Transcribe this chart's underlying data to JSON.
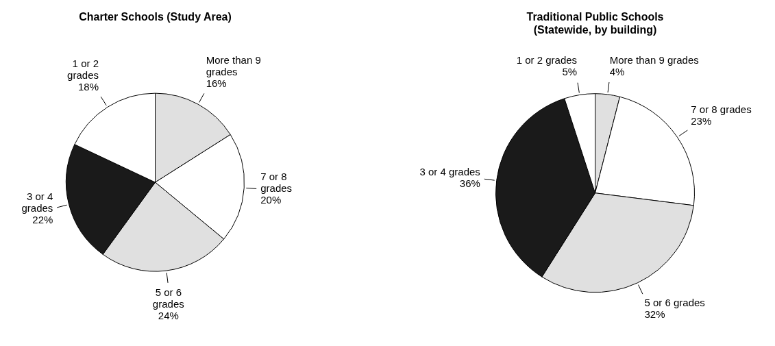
{
  "chart_data": [
    {
      "type": "pie",
      "title": "Charter Schools (Study Area)",
      "categories": [
        "More than 9 grades",
        "7 or 8 grades",
        "5 or 6 grades",
        "3 or 4 grades",
        "1 or 2 grades"
      ],
      "values": [
        16,
        20,
        24,
        22,
        18
      ],
      "value_labels": [
        "16%",
        "20%",
        "24%",
        "22%",
        "18%"
      ],
      "colors": [
        "#e0e0e0",
        "#ffffff",
        "#e0e0e0",
        "#1a1a1a",
        "#ffffff"
      ],
      "legend": false
    },
    {
      "type": "pie",
      "title": "Traditional Public Schools (Statewide, by building)",
      "categories": [
        "More than 9 grades",
        "7 or 8 grades",
        "5 or 6 grades",
        "3 or 4 grades",
        "1 or 2 grades"
      ],
      "values": [
        4,
        23,
        32,
        36,
        5
      ],
      "value_labels": [
        "4%",
        "23%",
        "32%",
        "36%",
        "5%"
      ],
      "colors": [
        "#e0e0e0",
        "#ffffff",
        "#e0e0e0",
        "#1a1a1a",
        "#ffffff"
      ],
      "legend": false
    }
  ]
}
